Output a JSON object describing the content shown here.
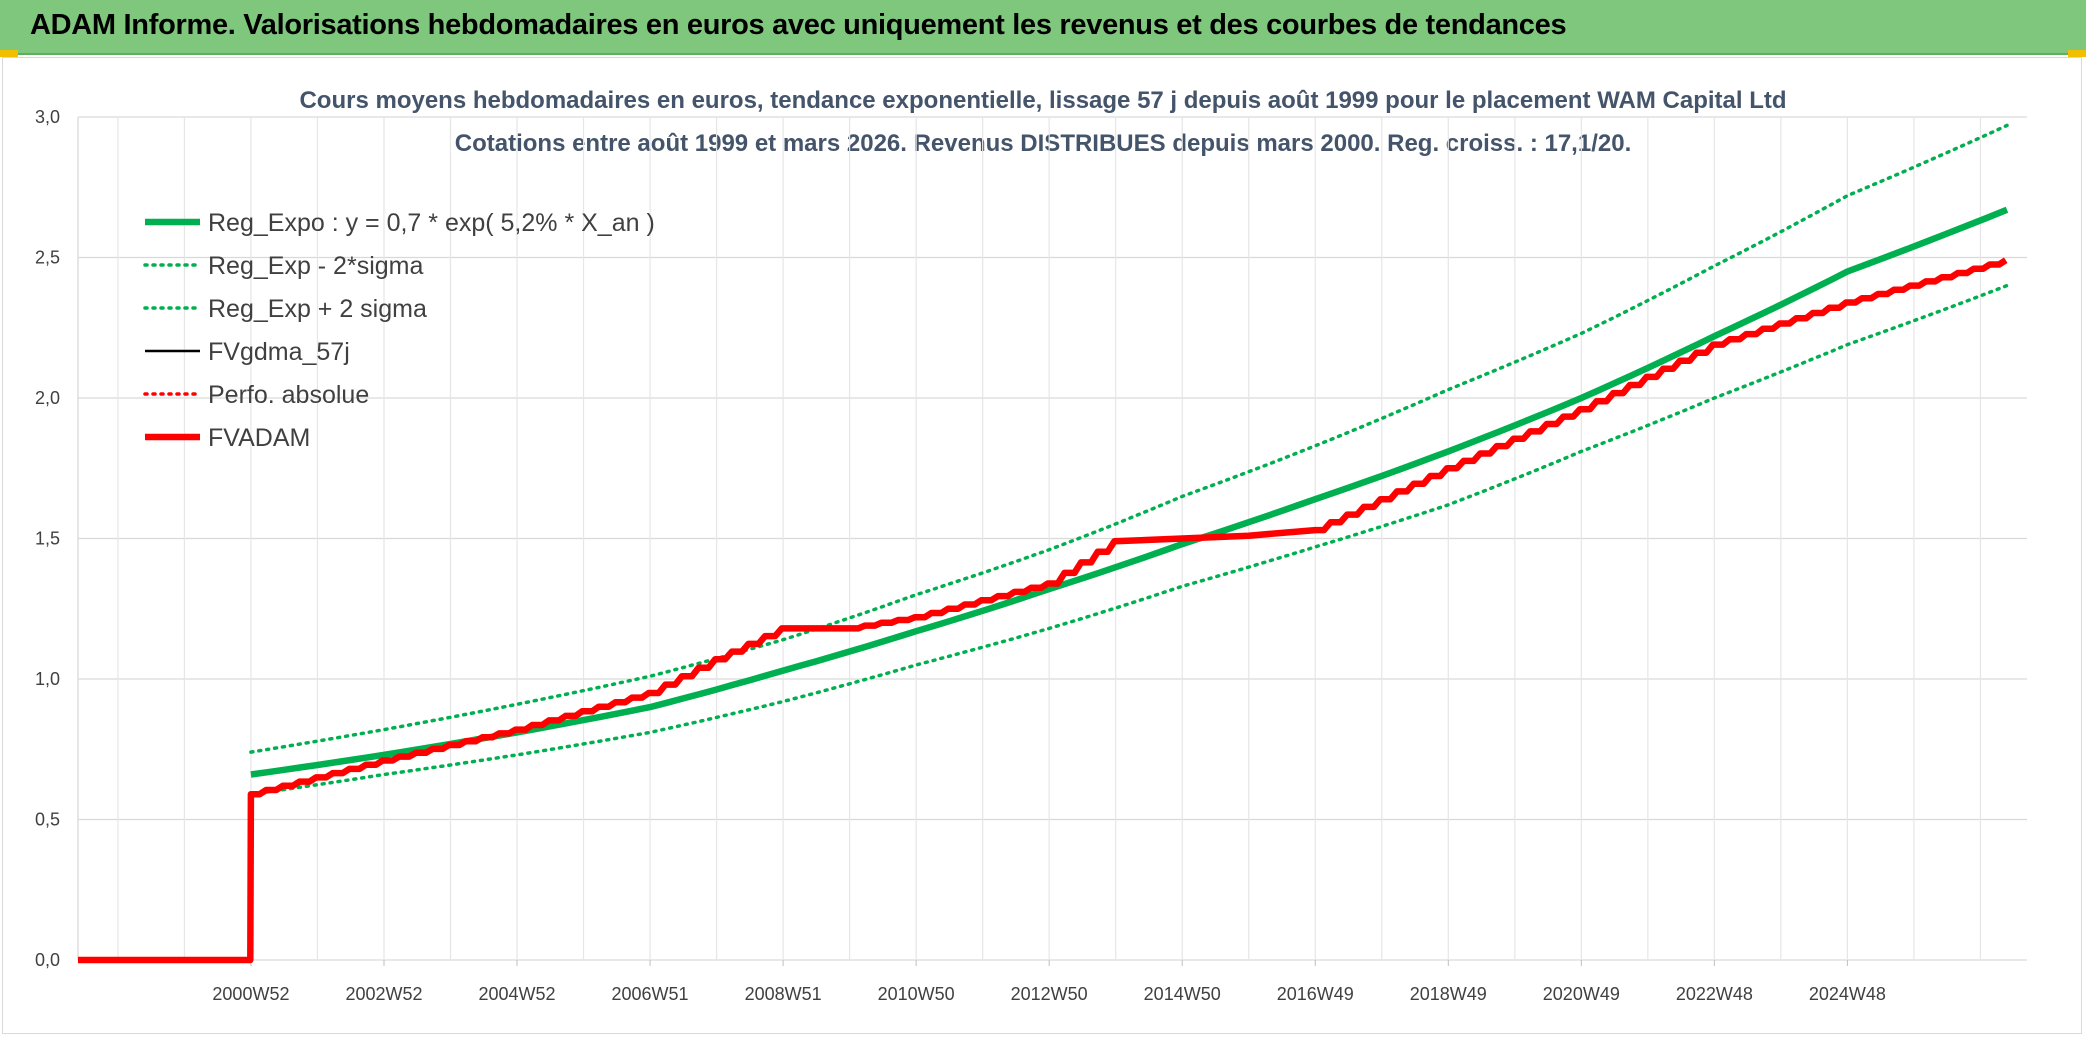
{
  "header": {
    "title": "ADAM Informe. Valorisations hebdomadaires en euros avec uniquement les revenus et des courbes de tendances"
  },
  "colors": {
    "banner": "#7fc77d",
    "reg_expo": "#00b050",
    "fvadam": "#ff0000",
    "fvgdma": "#000000",
    "grid": "#d9d9d9"
  },
  "chart_data": {
    "type": "line",
    "title": "Cours moyens hebdomadaires en euros, tendance exponentielle, lissage 57 j depuis août 1999 pour le placement WAM Capital Ltd",
    "subtitle": "Cotations entre août 1999 et mars 2026. Revenus DISTRIBUES depuis mars 2000. Reg. croiss. : 17,1/20.",
    "xlabel": "",
    "ylabel": "",
    "ylim": [
      0,
      3
    ],
    "y_ticks": [
      "0,0",
      "0,5",
      "1,0",
      "1,5",
      "2,0",
      "2,5",
      "3,0"
    ],
    "x_range": [
      1997.4,
      2026.7
    ],
    "x_ticks": [
      {
        "x": 2000.0,
        "label": "2000W52"
      },
      {
        "x": 2002.0,
        "label": "2002W52"
      },
      {
        "x": 2004.0,
        "label": "2004W52"
      },
      {
        "x": 2006.0,
        "label": "2006W51"
      },
      {
        "x": 2008.0,
        "label": "2008W51"
      },
      {
        "x": 2010.0,
        "label": "2010W50"
      },
      {
        "x": 2012.0,
        "label": "2012W50"
      },
      {
        "x": 2014.0,
        "label": "2014W50"
      },
      {
        "x": 2016.0,
        "label": "2016W49"
      },
      {
        "x": 2018.0,
        "label": "2018W49"
      },
      {
        "x": 2020.0,
        "label": "2020W49"
      },
      {
        "x": 2022.0,
        "label": "2022W48"
      },
      {
        "x": 2024.0,
        "label": "2024W48"
      }
    ],
    "grid": true,
    "legend_position": "top-left",
    "series": [
      {
        "name": "Reg_Expo : y = 0,7 * exp( 5,2% *  X_an )",
        "style": "solid-thick",
        "color": "#00b050",
        "x": [
          2000.0,
          2002.0,
          2004.0,
          2006.0,
          2008.0,
          2010.0,
          2012.0,
          2014.0,
          2016.0,
          2018.0,
          2020.0,
          2022.0,
          2024.0,
          2026.4
        ],
        "y": [
          0.66,
          0.73,
          0.81,
          0.9,
          1.03,
          1.17,
          1.32,
          1.48,
          1.64,
          1.81,
          2.0,
          2.22,
          2.45,
          2.67
        ]
      },
      {
        "name": "Reg_Exp - 2*sigma",
        "style": "dotted",
        "color": "#00b050",
        "x": [
          2000.0,
          2002.0,
          2004.0,
          2006.0,
          2008.0,
          2010.0,
          2012.0,
          2014.0,
          2016.0,
          2018.0,
          2020.0,
          2022.0,
          2024.0,
          2026.4
        ],
        "y": [
          0.59,
          0.66,
          0.73,
          0.81,
          0.92,
          1.05,
          1.18,
          1.33,
          1.47,
          1.62,
          1.81,
          2.0,
          2.19,
          2.4
        ]
      },
      {
        "name": "Reg_Exp + 2 sigma",
        "style": "dotted",
        "color": "#00b050",
        "x": [
          2000.0,
          2002.0,
          2004.0,
          2006.0,
          2008.0,
          2010.0,
          2012.0,
          2014.0,
          2016.0,
          2018.0,
          2020.0,
          2022.0,
          2024.0,
          2026.4
        ],
        "y": [
          0.74,
          0.82,
          0.91,
          1.01,
          1.14,
          1.3,
          1.46,
          1.65,
          1.83,
          2.03,
          2.23,
          2.47,
          2.72,
          2.97
        ]
      },
      {
        "name": "FVgdma_57j",
        "style": "solid",
        "color": "#000000",
        "x": [
          1997.4,
          1999.99,
          2000.0,
          2002.0,
          2004.0,
          2006.0,
          2007.0,
          2008.0,
          2009.0,
          2010.0,
          2012.0,
          2013.0,
          2015.0,
          2016.0,
          2018.0,
          2020.0,
          2022.0,
          2024.0,
          2026.4
        ],
        "y": [
          0.0,
          0.0,
          0.59,
          0.71,
          0.82,
          0.95,
          1.07,
          1.18,
          1.18,
          1.22,
          1.34,
          1.49,
          1.51,
          1.53,
          1.75,
          1.96,
          2.19,
          2.34,
          2.49
        ]
      },
      {
        "name": "Perfo. absolue",
        "style": "dotted",
        "color": "#ff0000",
        "x": [],
        "y": []
      },
      {
        "name": "FVADAM",
        "style": "solid-thick",
        "color": "#ff0000",
        "x": [
          1997.4,
          1999.99,
          2000.0,
          2002.0,
          2004.0,
          2006.0,
          2007.0,
          2008.0,
          2009.0,
          2010.0,
          2012.0,
          2013.0,
          2015.0,
          2016.0,
          2018.0,
          2020.0,
          2022.0,
          2024.0,
          2026.4
        ],
        "y": [
          0.0,
          0.0,
          0.59,
          0.71,
          0.82,
          0.95,
          1.07,
          1.18,
          1.18,
          1.22,
          1.34,
          1.49,
          1.51,
          1.53,
          1.75,
          1.96,
          2.19,
          2.34,
          2.49
        ]
      }
    ]
  }
}
